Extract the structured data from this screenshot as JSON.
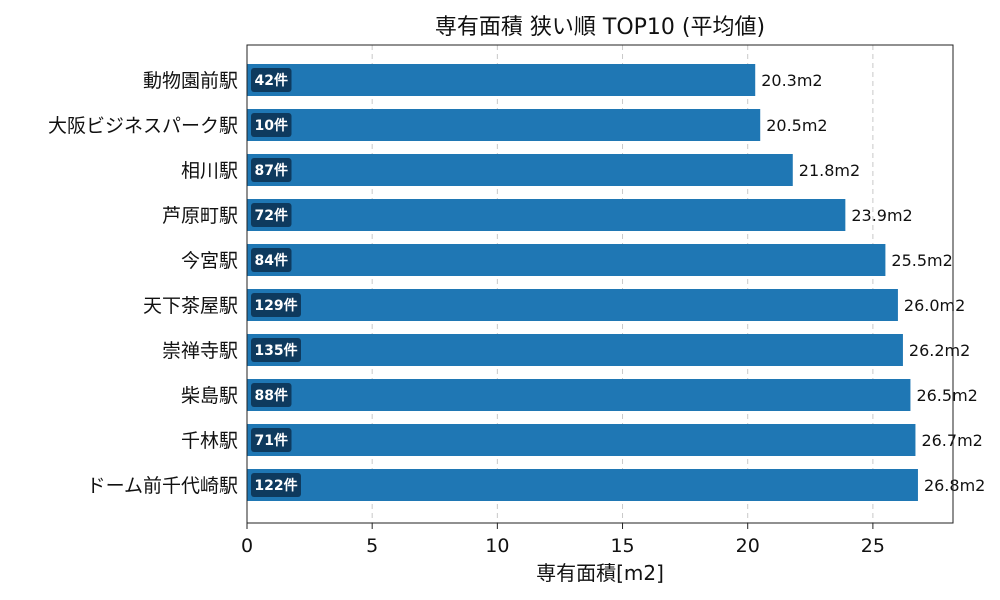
{
  "chart_data": {
    "type": "bar",
    "orientation": "horizontal",
    "title": "専有面積 狭い順 TOP10 (平均値)",
    "xlabel": "専有面積[m2]",
    "ylabel": "",
    "xlim": [
      0,
      28.2
    ],
    "xticks": [
      0,
      5,
      10,
      15,
      20,
      25
    ],
    "grid": "x-dashed",
    "bar_color": "#1f77b4",
    "badge_color": "#0e3a5e",
    "categories": [
      "動物園前駅",
      "大阪ビジネスパーク駅",
      "相川駅",
      "芦原町駅",
      "今宮駅",
      "天下茶屋駅",
      "崇禅寺駅",
      "柴島駅",
      "千林駅",
      "ドーム前千代崎駅"
    ],
    "values": [
      20.3,
      20.5,
      21.8,
      23.9,
      25.5,
      26.0,
      26.2,
      26.5,
      26.7,
      26.8
    ],
    "value_labels": [
      "20.3m2",
      "20.5m2",
      "21.8m2",
      "23.9m2",
      "25.5m2",
      "26.0m2",
      "26.2m2",
      "26.5m2",
      "26.7m2",
      "26.8m2"
    ],
    "count_labels": [
      "42件",
      "10件",
      "87件",
      "72件",
      "84件",
      "129件",
      "135件",
      "88件",
      "71件",
      "122件"
    ]
  }
}
